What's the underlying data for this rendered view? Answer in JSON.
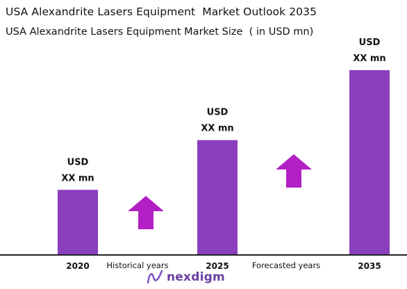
{
  "chart_data": {
    "type": "bar",
    "title": "USA Alexandrite Lasers Equipment  Market Outlook 2035",
    "subtitle": "USA Alexandrite Lasers Equipment Market Size  ( in USD mn)",
    "categories": [
      "2020",
      "2025",
      "2035"
    ],
    "values": [
      35,
      62,
      100
    ],
    "value_labels": [
      [
        "USD",
        "XX mn"
      ],
      [
        "USD",
        "XX mn"
      ],
      [
        "USD",
        "XX mn"
      ]
    ],
    "period_labels": [
      "Historical years",
      "Forecasted years"
    ],
    "bar_color": "#8a3fbd",
    "arrow_color": "#b21fc4",
    "axis_color": "#222222",
    "grid": false
  },
  "logo": {
    "text": "nexdigm",
    "color": "#6a3fa0"
  }
}
